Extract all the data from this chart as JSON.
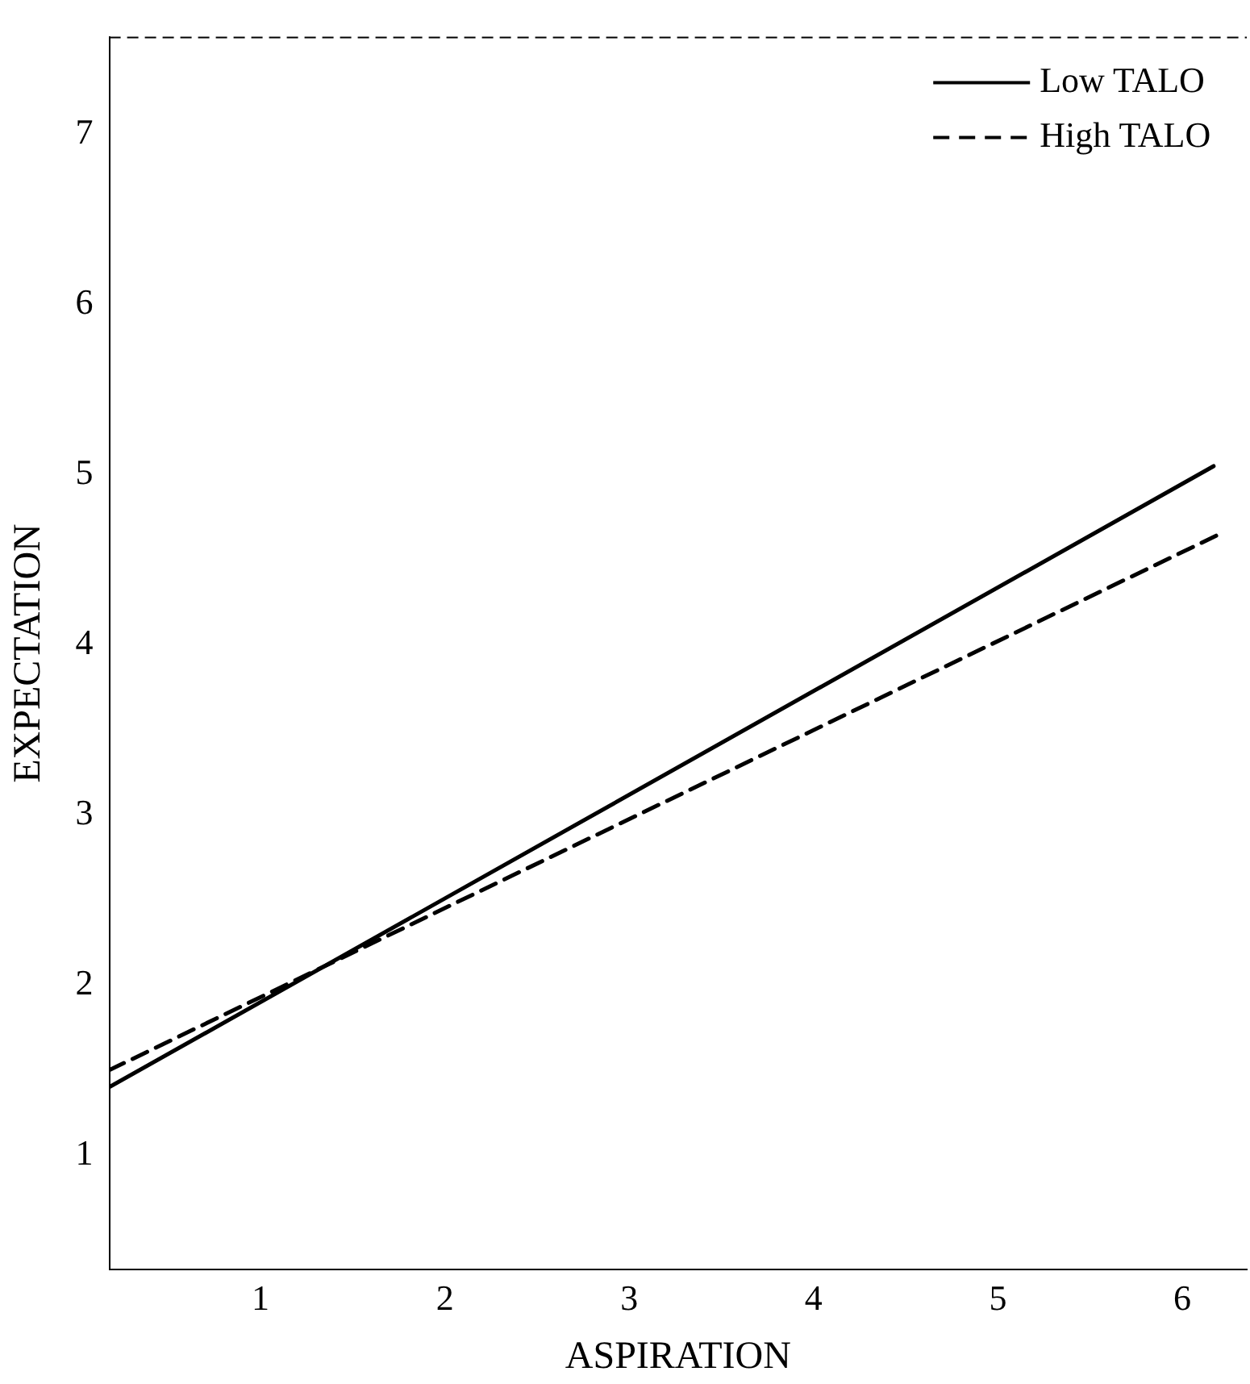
{
  "chart_data": {
    "type": "line",
    "xlabel": "ASPIRATION",
    "ylabel": "EXPECTATION",
    "series": [
      {
        "name": "Low TALO",
        "color": "#000000",
        "line_style": "solid",
        "x": [
          0.18,
          6.17
        ],
        "values": [
          1.4,
          5.05
        ]
      },
      {
        "name": "High TALO",
        "color": "#000000",
        "line_style": "dashed",
        "x": [
          0.18,
          6.22
        ],
        "values": [
          1.5,
          4.66
        ]
      }
    ],
    "xlim": [
      0.18,
      6.35
    ],
    "ylim": [
      0.33,
      7.57
    ],
    "xticks": [
      1,
      2,
      3,
      4,
      5,
      6
    ],
    "yticks": [
      1,
      2,
      3,
      4,
      5,
      6,
      7
    ],
    "grid": false,
    "legend": "top right",
    "marker": "none"
  }
}
